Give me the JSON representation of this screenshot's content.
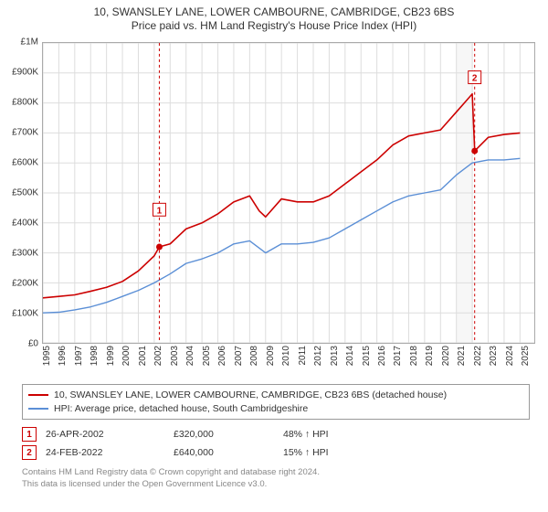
{
  "title": {
    "line1": "10, SWANSLEY LANE, LOWER CAMBOURNE, CAMBRIDGE, CB23 6BS",
    "line2": "Price paid vs. HM Land Registry's House Price Index (HPI)",
    "fontsize": 12,
    "color": "#333333"
  },
  "chart": {
    "type": "line",
    "background_color": "#ffffff",
    "plot_border_color": "#aaaaaa",
    "grid_color": "#dddddd",
    "grid_linewidth": 1,
    "band": {
      "from_year": 2021,
      "to_year": 2022,
      "fill": "#f7f7f7"
    },
    "x": {
      "min_year": 1995,
      "max_year": 2025.9,
      "ticks": [
        1995,
        1996,
        1997,
        1998,
        1999,
        2000,
        2001,
        2002,
        2003,
        2004,
        2005,
        2006,
        2007,
        2008,
        2009,
        2010,
        2011,
        2012,
        2013,
        2014,
        2015,
        2016,
        2017,
        2018,
        2019,
        2020,
        2021,
        2022,
        2023,
        2024,
        2025
      ],
      "tick_fontsize": 10,
      "tick_color": "#333333",
      "rotation": -90
    },
    "y": {
      "min": 0,
      "max": 1000000,
      "ticks": [
        0,
        100000,
        200000,
        300000,
        400000,
        500000,
        600000,
        700000,
        800000,
        900000,
        1000000
      ],
      "tick_labels": [
        "£0",
        "£100K",
        "£200K",
        "£300K",
        "£400K",
        "£500K",
        "£600K",
        "£700K",
        "£800K",
        "£900K",
        "£1M"
      ],
      "tick_fontsize": 10,
      "tick_color": "#333333"
    },
    "series": [
      {
        "id": "property",
        "label": "10, SWANSLEY LANE, LOWER CAMBOURNE, CAMBRIDGE, CB23 6BS (detached house)",
        "color": "#cc0000",
        "linewidth": 1.6,
        "fill_to_y0": false,
        "data": [
          [
            1995.0,
            150000
          ],
          [
            1996.0,
            155000
          ],
          [
            1997.0,
            160000
          ],
          [
            1998.0,
            172000
          ],
          [
            1999.0,
            185000
          ],
          [
            2000.0,
            205000
          ],
          [
            2001.0,
            240000
          ],
          [
            2002.0,
            290000
          ],
          [
            2002.32,
            320000
          ],
          [
            2003.0,
            330000
          ],
          [
            2004.0,
            380000
          ],
          [
            2005.0,
            400000
          ],
          [
            2006.0,
            430000
          ],
          [
            2007.0,
            470000
          ],
          [
            2008.0,
            490000
          ],
          [
            2008.6,
            440000
          ],
          [
            2009.0,
            420000
          ],
          [
            2010.0,
            480000
          ],
          [
            2011.0,
            470000
          ],
          [
            2012.0,
            470000
          ],
          [
            2013.0,
            490000
          ],
          [
            2014.0,
            530000
          ],
          [
            2015.0,
            570000
          ],
          [
            2016.0,
            610000
          ],
          [
            2017.0,
            660000
          ],
          [
            2018.0,
            690000
          ],
          [
            2019.0,
            700000
          ],
          [
            2020.0,
            710000
          ],
          [
            2021.0,
            770000
          ],
          [
            2022.0,
            830000
          ],
          [
            2022.15,
            640000
          ],
          [
            2023.0,
            685000
          ],
          [
            2024.0,
            695000
          ],
          [
            2025.0,
            700000
          ]
        ]
      },
      {
        "id": "hpi",
        "label": "HPI: Average price, detached house, South Cambridgeshire",
        "color": "#5b8fd6",
        "linewidth": 1.4,
        "fill_to_y0": false,
        "data": [
          [
            1995.0,
            100000
          ],
          [
            1996.0,
            102000
          ],
          [
            1997.0,
            110000
          ],
          [
            1998.0,
            120000
          ],
          [
            1999.0,
            135000
          ],
          [
            2000.0,
            155000
          ],
          [
            2001.0,
            175000
          ],
          [
            2002.0,
            200000
          ],
          [
            2003.0,
            230000
          ],
          [
            2004.0,
            265000
          ],
          [
            2005.0,
            280000
          ],
          [
            2006.0,
            300000
          ],
          [
            2007.0,
            330000
          ],
          [
            2008.0,
            340000
          ],
          [
            2009.0,
            300000
          ],
          [
            2010.0,
            330000
          ],
          [
            2011.0,
            330000
          ],
          [
            2012.0,
            335000
          ],
          [
            2013.0,
            350000
          ],
          [
            2014.0,
            380000
          ],
          [
            2015.0,
            410000
          ],
          [
            2016.0,
            440000
          ],
          [
            2017.0,
            470000
          ],
          [
            2018.0,
            490000
          ],
          [
            2019.0,
            500000
          ],
          [
            2020.0,
            510000
          ],
          [
            2021.0,
            560000
          ],
          [
            2022.0,
            600000
          ],
          [
            2023.0,
            610000
          ],
          [
            2024.0,
            610000
          ],
          [
            2025.0,
            615000
          ]
        ]
      }
    ],
    "event_markers": {
      "border_color": "#cc0000",
      "text_color": "#cc0000",
      "guide_dash": "3,3",
      "items": [
        {
          "n": "1",
          "year": 2002.32,
          "price": 320000,
          "box_dy": -40
        },
        {
          "n": "2",
          "year": 2022.15,
          "price": 640000,
          "box_dy": -80
        }
      ]
    }
  },
  "legend": {
    "border_color": "#999999",
    "rows": [
      {
        "color": "#cc0000",
        "label": "10, SWANSLEY LANE, LOWER CAMBOURNE, CAMBRIDGE, CB23 6BS (detached house)"
      },
      {
        "color": "#5b8fd6",
        "label": "HPI: Average price, detached house, South Cambridgeshire"
      }
    ]
  },
  "events_table": [
    {
      "n": "1",
      "date": "26-APR-2002",
      "price": "£320,000",
      "delta": "48% ↑ HPI"
    },
    {
      "n": "2",
      "date": "24-FEB-2022",
      "price": "£640,000",
      "delta": "15% ↑ HPI"
    }
  ],
  "footnote": {
    "line1": "Contains HM Land Registry data © Crown copyright and database right 2024.",
    "line2": "This data is licensed under the Open Government Licence v3.0.",
    "color": "#888888"
  }
}
